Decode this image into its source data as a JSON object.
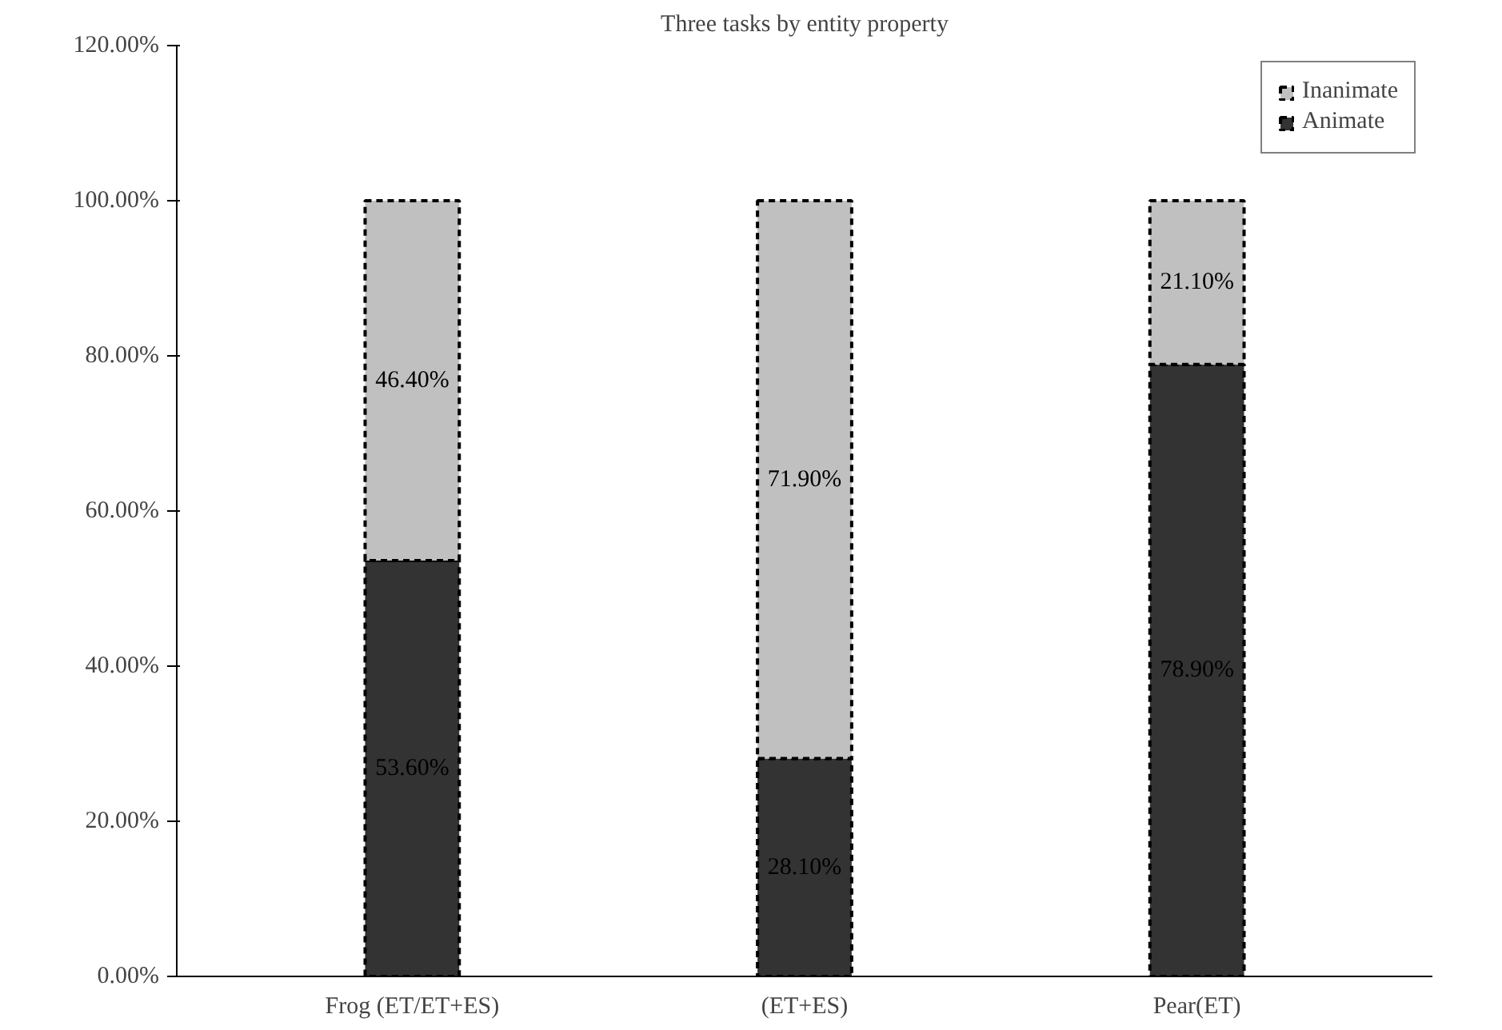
{
  "chart_data": {
    "type": "bar",
    "stacked": true,
    "title": "Three tasks by entity property",
    "categories": [
      "Frog (ET/ET+ES)",
      "(ET+ES)",
      "Pear(ET)"
    ],
    "series": [
      {
        "name": "Animate",
        "color": "#333333",
        "values": [
          53.6,
          28.1,
          78.9
        ],
        "value_labels": [
          "53.60%",
          "28.10%",
          "78.90%"
        ]
      },
      {
        "name": "Inanimate",
        "color": "#c0c0c0",
        "values": [
          46.4,
          71.9,
          21.1
        ],
        "value_labels": [
          "46.40%",
          "71.90%",
          "21.10%"
        ]
      }
    ],
    "ylim": [
      0,
      120
    ],
    "yticks": [
      {
        "value": 0,
        "label": "0.00%"
      },
      {
        "value": 20,
        "label": "20.00%"
      },
      {
        "value": 40,
        "label": "40.00%"
      },
      {
        "value": 60,
        "label": "60.00%"
      },
      {
        "value": 80,
        "label": "80.00%"
      },
      {
        "value": 100,
        "label": "100.00%"
      },
      {
        "value": 120,
        "label": "120.00%"
      }
    ],
    "grid": false,
    "legend": "top right"
  }
}
